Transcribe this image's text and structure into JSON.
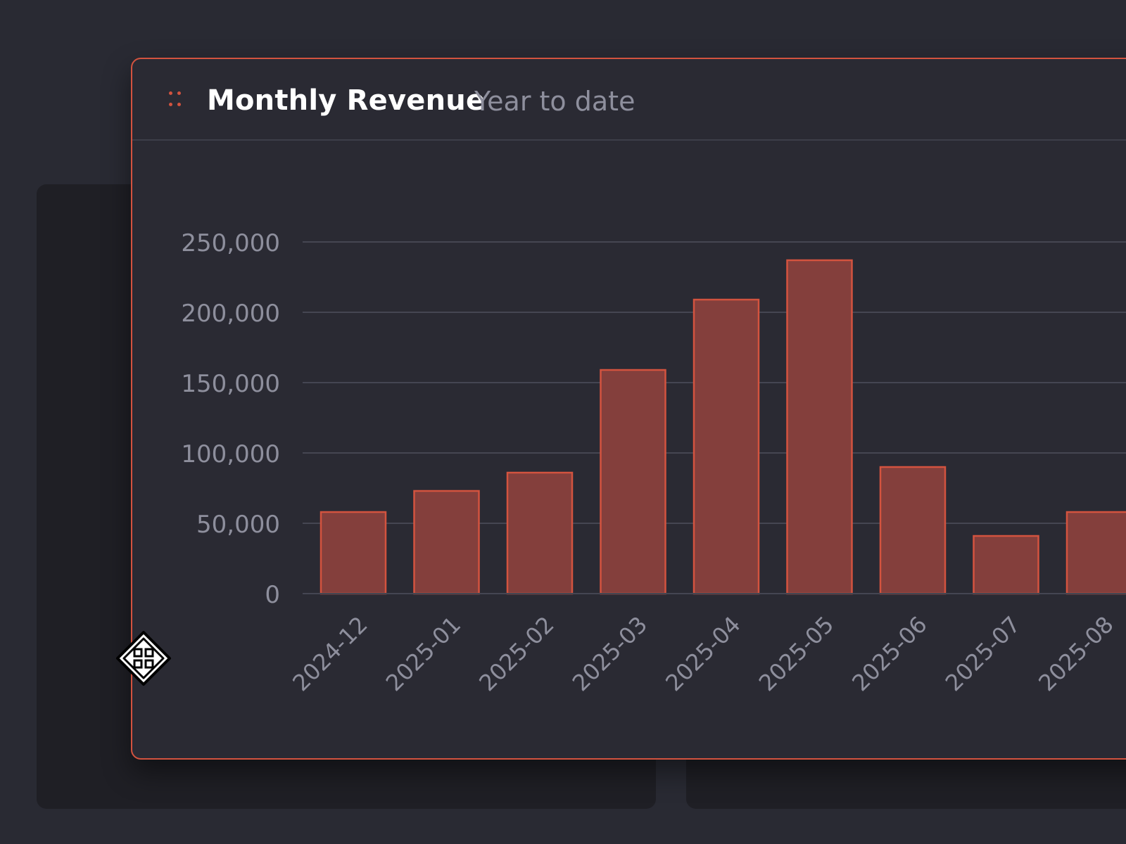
{
  "panel": {
    "title": "Monthly Revenue",
    "subtitle": "Year to date"
  },
  "icons": {
    "drag_handle": "drag-handle-icon",
    "cursor": "move-cursor-icon"
  },
  "colors": {
    "accent": "#d3533f",
    "bar_fill": "#843f3c",
    "grid": "#454652",
    "tick_text": "#8e8f9d"
  },
  "chart_data": {
    "type": "bar",
    "title": "Monthly Revenue",
    "subtitle": "Year to date",
    "categories": [
      "2024-12",
      "2025-01",
      "2025-02",
      "2025-03",
      "2025-04",
      "2025-05",
      "2025-06",
      "2025-07",
      "2025-08"
    ],
    "values": [
      58000,
      73000,
      86000,
      159000,
      209000,
      237000,
      90000,
      41000,
      58000
    ],
    "ylim": [
      0,
      250000
    ],
    "yticks": [
      0,
      50000,
      100000,
      150000,
      200000,
      250000
    ],
    "ytick_labels": [
      "0",
      "50,000",
      "100,000",
      "150,000",
      "200,000",
      "250,000"
    ],
    "grid": true,
    "xlabel": "",
    "ylabel": ""
  }
}
